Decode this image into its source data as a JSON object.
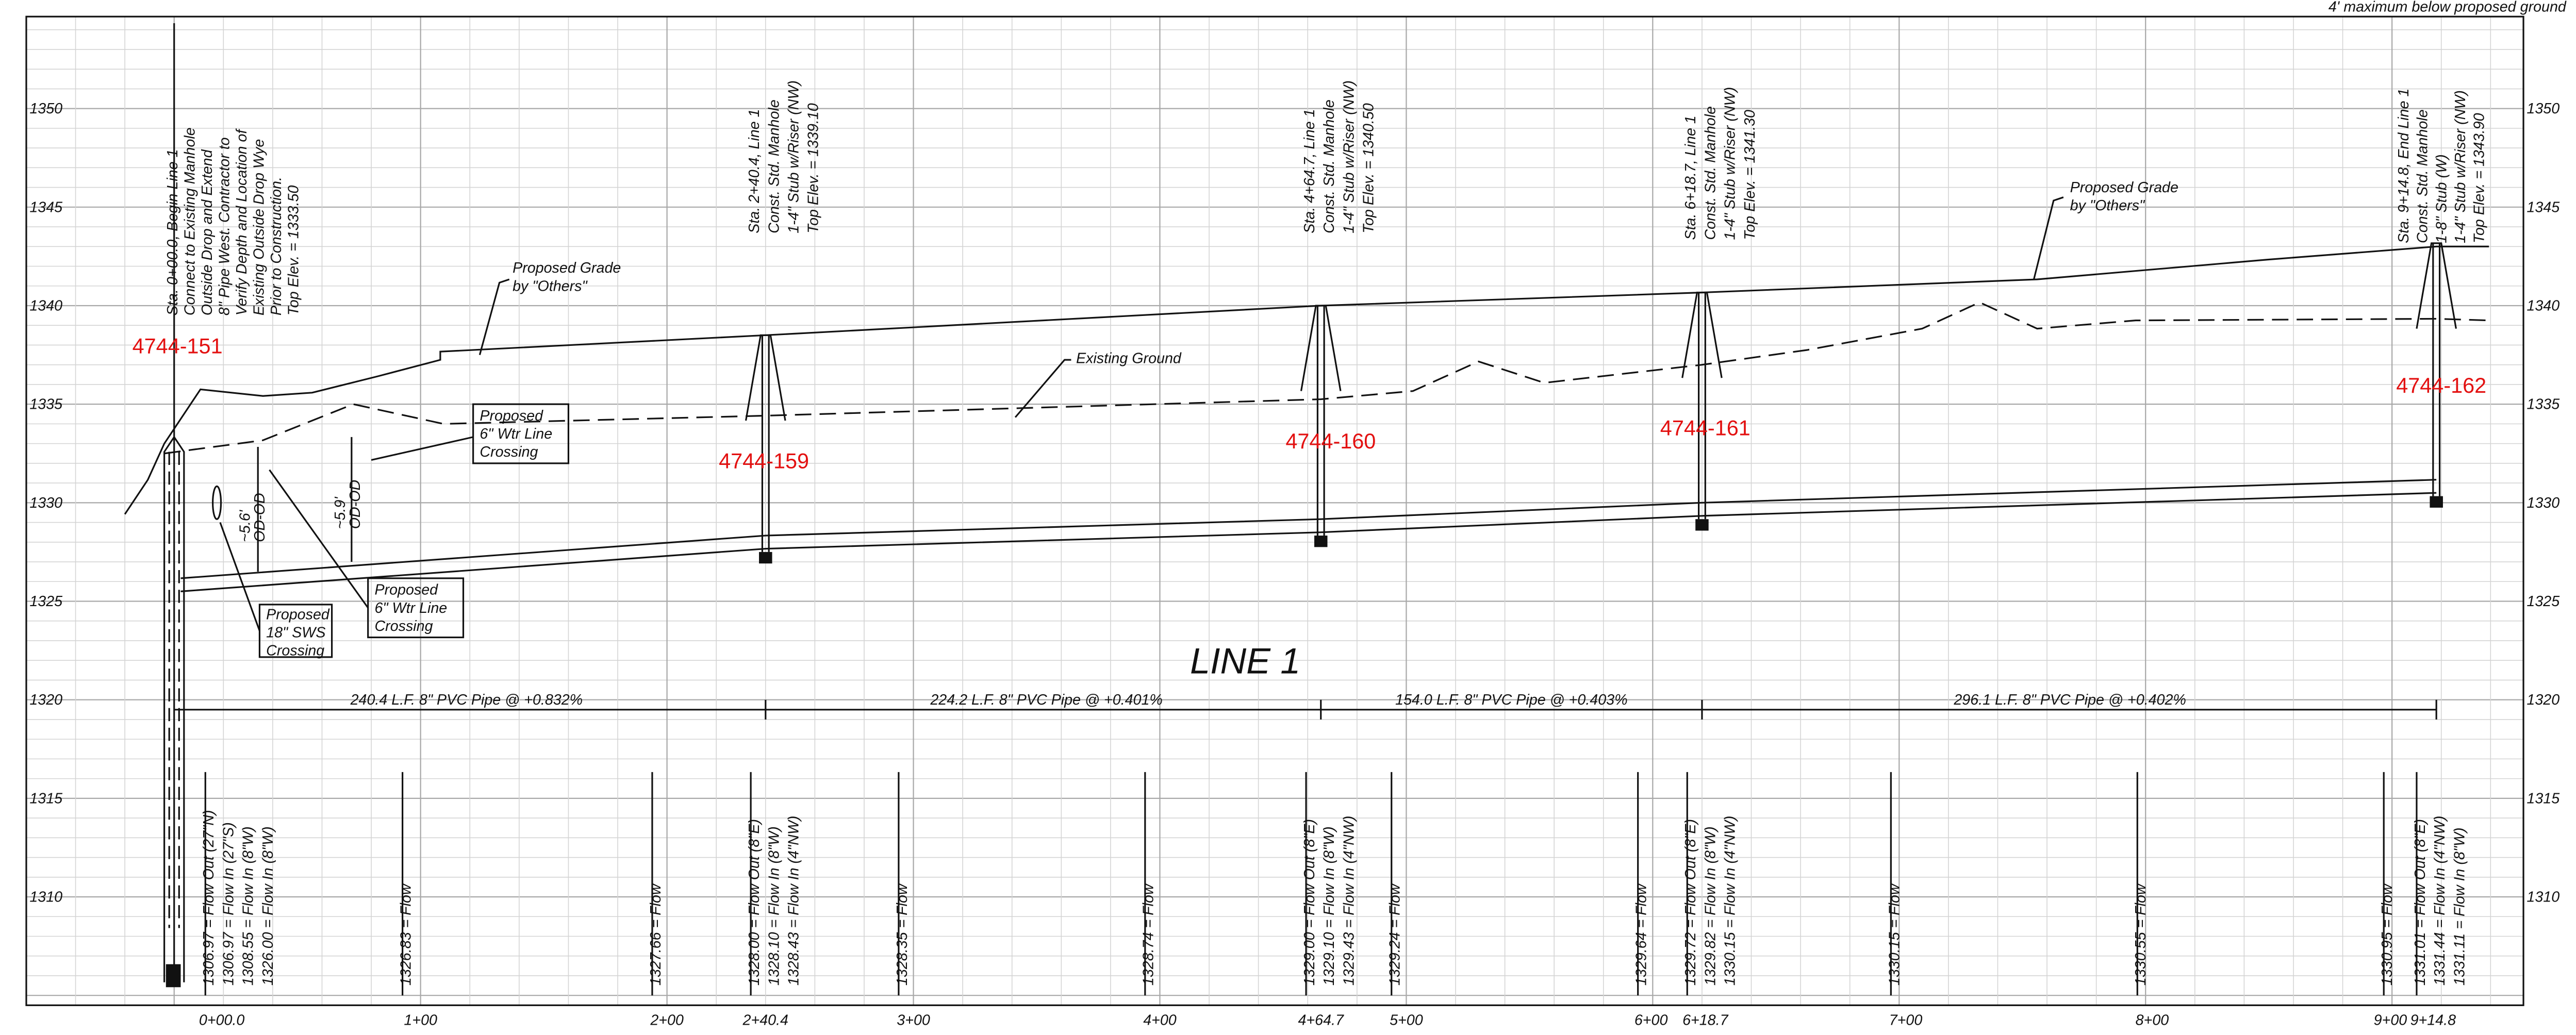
{
  "header": {
    "note": "4' maximum below proposed ground"
  },
  "profile_title": "LINE 1",
  "elevation_labels": [
    "1350",
    "1345",
    "1340",
    "1335",
    "1330",
    "1325",
    "1320",
    "1315",
    "1310"
  ],
  "station_labels": [
    "0+00.0",
    "1+00",
    "2+00",
    "2+40.4",
    "3+00",
    "4+00",
    "4+64.7",
    "5+00",
    "6+00",
    "6+18.7",
    "7+00",
    "8+00",
    "9+00",
    "9+14.8"
  ],
  "structure_notes": [
    [
      "Sta. 0+00.0, Begin Line 1",
      "Connect to Existing Manhole",
      "Outside Drop and Extend",
      "8\" Pipe West. Contractor to",
      "Verify Depth and Location of",
      "Existing Outside Drop Wye",
      "Prior to Construction.",
      "Top Elev. = 1333.50"
    ],
    [
      "Sta. 2+40.4, Line 1",
      "Const. Std. Manhole",
      "1-4\" Stub w/Riser (NW)",
      "Top Elev. = 1339.10"
    ],
    [
      "Sta. 4+64.7, Line 1",
      "Const. Std. Manhole",
      "1-4\" Stub w/Riser (NW)",
      "Top Elev. = 1340.50"
    ],
    [
      "Sta. 6+18.7, Line 1",
      "Const. Std. Manhole",
      "1-4\" Stub w/Riser (NW)",
      "Top Elev. = 1341.30"
    ],
    [
      "Sta. 9+14.8, End Line 1",
      "Const. Std. Manhole",
      "1-8\" Stub (W)",
      "1-4\" Stub w/Riser (NW)",
      "Top Elev. = 1343.90"
    ]
  ],
  "manhole_ids": [
    "4744-151",
    "4744-159",
    "4744-160",
    "4744-161",
    "4744-162"
  ],
  "segments": [
    "240.4 L.F. 8\" PVC Pipe @ +0.832%",
    "224.2 L.F. 8\" PVC Pipe @ +0.401%",
    "154.0 L.F. 8\" PVC Pipe @ +0.403%",
    "296.1 L.F. 8\" PVC Pipe @ +0.402%"
  ],
  "callouts": {
    "proposed_grade_1": [
      "Proposed Grade",
      "by \"Others\""
    ],
    "proposed_grade_2": [
      "Proposed Grade",
      "by \"Others\""
    ],
    "existing_ground": [
      "Existing Ground"
    ],
    "water_crossing_1": [
      "Proposed",
      "6\" Wtr Line",
      "Crossing"
    ],
    "water_crossing_2": [
      "Proposed",
      "6\" Wtr Line",
      "Crossing"
    ],
    "sws_crossing": [
      "Proposed",
      "18\" SWS",
      "Crossing"
    ],
    "clearance_1": [
      "~5.6'",
      "OD-OD"
    ],
    "clearance_2": [
      "~5.9'",
      "OD-OD"
    ]
  },
  "invert_groups": [
    [
      "1306.97 = Flow Out (27\"N)",
      "1306.97 = Flow In (27\"S)",
      "1308.55 = Flow In (8\"W)",
      "1326.00 = Flow In (8\"W)"
    ],
    [
      "1326.83 = Flow"
    ],
    [
      "1327.66 = Flow"
    ],
    [
      "1328.00 = Flow Out (8\"E)",
      "1328.10 = Flow In (8\"W)",
      "1328.43 = Flow In (4\"NW)"
    ],
    [
      "1328.35 = Flow"
    ],
    [
      "1328.74 = Flow"
    ],
    [
      "1329.00 = Flow Out (8\"E)",
      "1329.10 = Flow In (8\"W)",
      "1329.43 = Flow In (4\"NW)"
    ],
    [
      "1329.24 = Flow"
    ],
    [
      "1329.64 = Flow"
    ],
    [
      "1329.72 = Flow Out (8\"E)",
      "1329.82 = Flow In (8\"W)",
      "1330.15 = Flow In (4\"NW)"
    ],
    [
      "1330.15 = Flow"
    ],
    [
      "1330.55 = Flow"
    ],
    [
      "1330.95 = Flow"
    ],
    [
      "1331.01 = Flow Out (8\"E)",
      "1331.44 = Flow In (4\"NW)",
      "1331.11 = Flow In (8\"W)"
    ]
  ]
}
